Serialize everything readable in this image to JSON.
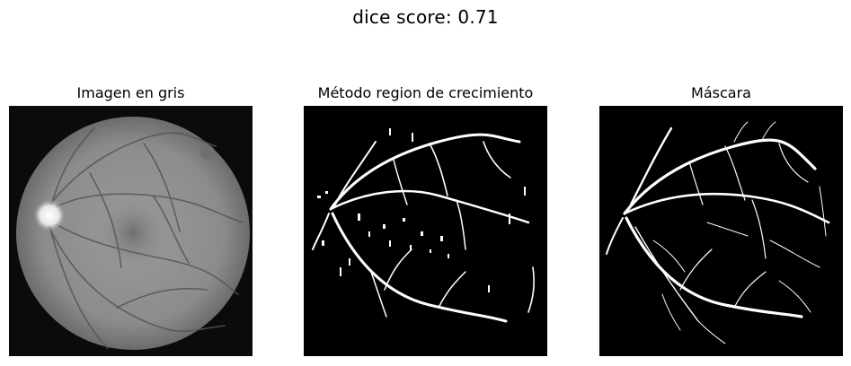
{
  "figure": {
    "suptitle": "dice score: 0.71"
  },
  "panels": [
    {
      "title": "Imagen en gris"
    },
    {
      "title": "Método region de crecimiento"
    },
    {
      "title": "Máscara"
    }
  ]
}
